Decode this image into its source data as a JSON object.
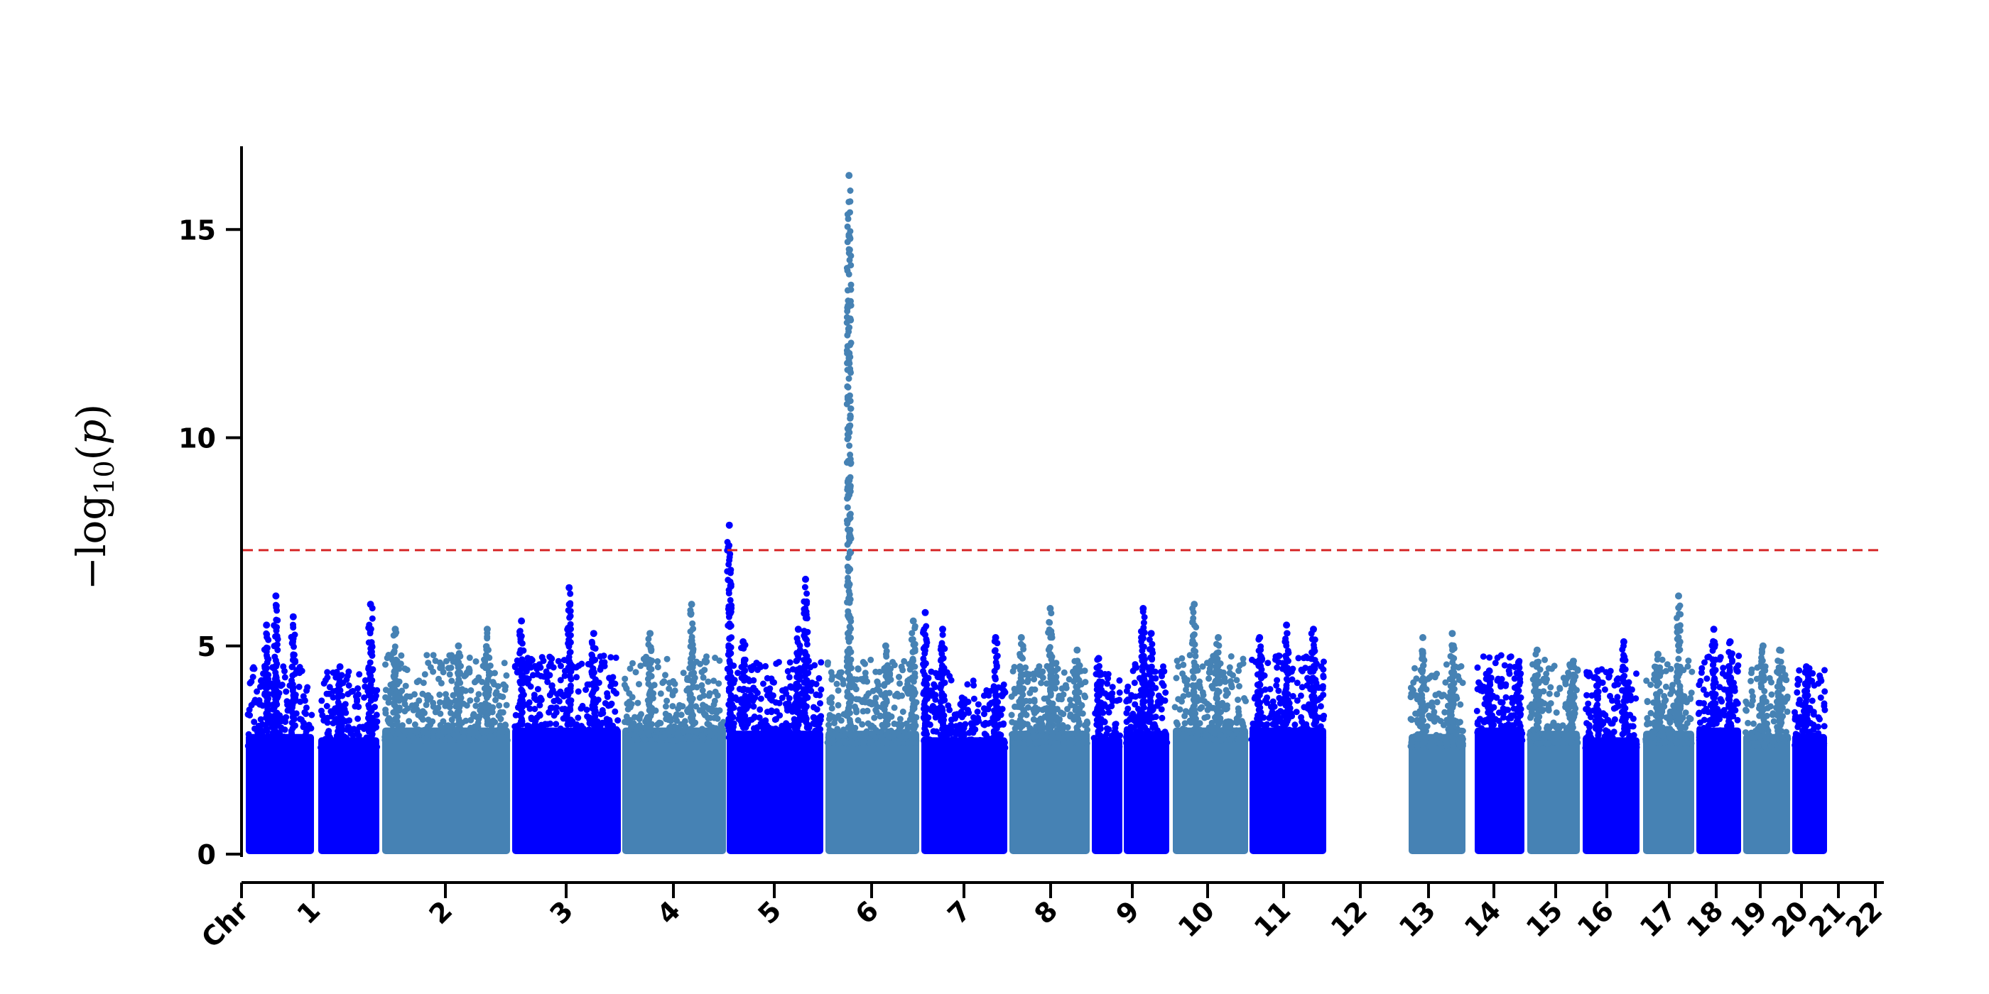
{
  "chart_data": {
    "type": "scatter",
    "subtype": "manhattan",
    "title": "",
    "ylabel": "−log10(p)",
    "ylabel_parts": {
      "minus_log": "−log",
      "sub": "10",
      "open": "(",
      "var": "p",
      "close": ")"
    },
    "xlabel": "",
    "x_axis_start_label": "Chr",
    "ylim": [
      0,
      17
    ],
    "yticks": [
      0,
      5,
      10,
      15
    ],
    "ytick_labels": [
      "0",
      "5",
      "10",
      "15"
    ],
    "significance_threshold": 7.3,
    "threshold_color": "#d62728",
    "series_colors": [
      "#0000ff",
      "#4682b4"
    ],
    "grid": false,
    "legend": "none",
    "chromosomes": [
      {
        "label": "1",
        "start": 0.5,
        "end": 10.7,
        "color": "#0000ff",
        "base": 3.7,
        "peaks": [
          [
            5.0,
            6.2
          ],
          [
            7.6,
            5.7
          ],
          [
            3.6,
            5.5
          ]
        ]
      },
      {
        "label": "2",
        "start": 11.3,
        "end": 20.3,
        "color": "#0000ff",
        "base": 3.6,
        "peaks": [
          [
            19.0,
            6.0
          ],
          [
            14.5,
            4.5
          ]
        ]
      },
      {
        "label": "3",
        "start": 20.8,
        "end": 40.4,
        "color": "#4682b4",
        "base": 3.9,
        "peaks": [
          [
            22.8,
            5.4
          ],
          [
            36.9,
            5.4
          ],
          [
            32.5,
            5.0
          ]
        ]
      },
      {
        "label": "4",
        "start": 40.9,
        "end": 57.3,
        "color": "#0000ff",
        "base": 3.9,
        "peaks": [
          [
            49.5,
            6.4
          ],
          [
            42.3,
            5.6
          ],
          [
            53.2,
            5.3
          ]
        ]
      },
      {
        "label": "5",
        "start": 57.8,
        "end": 73.5,
        "color": "#4682b4",
        "base": 3.9,
        "peaks": [
          [
            68.3,
            6.0
          ],
          [
            62.0,
            5.3
          ]
        ]
      },
      {
        "label": "6",
        "start": 74.0,
        "end": 88.7,
        "color": "#0000ff",
        "base": 3.8,
        "peaks": [
          [
            74.4,
            7.9
          ],
          [
            86.0,
            6.6
          ],
          [
            76.5,
            5.1
          ],
          [
            84.9,
            5.4
          ]
        ]
      },
      {
        "label": "7",
        "start": 89.2,
        "end": 103.5,
        "color": "#4682b4",
        "base": 3.8,
        "peaks": [
          [
            92.8,
            16.3
          ],
          [
            98.4,
            5.0
          ],
          [
            102.6,
            5.6
          ]
        ]
      },
      {
        "label": "8",
        "start": 104.0,
        "end": 117.3,
        "color": "#0000ff",
        "base": 3.6,
        "peaks": [
          [
            104.6,
            5.8
          ],
          [
            107.3,
            5.4
          ],
          [
            115.5,
            5.2
          ]
        ]
      },
      {
        "label": "9",
        "start": 117.8,
        "end": 130.6,
        "color": "#4682b4",
        "base": 3.8,
        "peaks": [
          [
            124.3,
            5.9
          ],
          [
            119.7,
            5.2
          ],
          [
            128.6,
            4.9
          ]
        ]
      },
      {
        "label": "10",
        "start": 131.1,
        "end": 135.6,
        "color": "#0000ff",
        "base": 3.6,
        "peaks": [
          [
            132.1,
            4.7
          ]
        ]
      },
      {
        "label": "11",
        "start": 136.1,
        "end": 142.9,
        "color": "#0000ff",
        "base": 3.8,
        "peaks": [
          [
            139.0,
            5.9
          ],
          [
            140.2,
            5.3
          ]
        ]
      },
      {
        "label": "12",
        "start": 143.4,
        "end": 155.0,
        "color": "#4682b4",
        "base": 3.9,
        "peaks": [
          [
            146.7,
            6.0
          ],
          [
            150.4,
            5.2
          ]
        ]
      },
      {
        "label": "13",
        "start": 155.5,
        "end": 166.9,
        "color": "#0000ff",
        "base": 3.9,
        "peaks": [
          [
            157.0,
            5.2
          ],
          [
            161.0,
            5.5
          ],
          [
            165.0,
            5.4
          ]
        ]
      },
      {
        "label": "14",
        "start": 167.4,
        "end": 179.0,
        "color": "#4682b4",
        "base": 3.7,
        "peaks": [
          [
            170.3,
            5.2
          ],
          [
            176.3,
            5.3
          ]
        ]
      },
      {
        "label": "15",
        "start": 179.5,
        "end": 179.6,
        "color": "#ffffff",
        "base": 0,
        "peaks": []
      },
      {
        "label": "16",
        "start": 181.5,
        "end": 190.0,
        "color": "#0000ff",
        "base": 3.9,
        "peaks": [
          [
            184.0,
            4.4
          ],
          [
            189.0,
            4.6
          ]
        ]
      },
      {
        "label": "17",
        "start": 191.5,
        "end": 199.5,
        "color": "#4682b4",
        "base": 3.8,
        "peaks": [
          [
            193.0,
            4.9
          ],
          [
            198.5,
            4.3
          ]
        ]
      },
      {
        "label": "18",
        "start": 201.0,
        "end": 208.6,
        "color": "#0000ff",
        "base": 3.6,
        "peaks": [
          [
            206.5,
            5.1
          ],
          [
            203.0,
            4.4
          ]
        ]
      },
      {
        "label": "19",
        "start": 209.1,
        "end": 217.3,
        "color": "#4682b4",
        "base": 3.8,
        "peaks": [
          [
            214.8,
            6.2
          ],
          [
            211.5,
            4.8
          ]
        ]
      },
      {
        "label": "20",
        "start": 217.8,
        "end": 226.0,
        "color": "#0000ff",
        "base": 3.9,
        "peaks": [
          [
            221.0,
            5.4
          ],
          [
            224.0,
            5.1
          ]
        ]
      },
      {
        "label": "21",
        "start": 226.5,
        "end": 233.6,
        "color": "#4682b4",
        "base": 3.7,
        "peaks": [
          [
            229.5,
            5.0
          ],
          [
            232.0,
            4.9
          ]
        ]
      },
      {
        "label": "22",
        "start": 234.1,
        "end": 240.0,
        "color": "#0000ff",
        "base": 3.7,
        "peaks": [
          [
            236.5,
            4.5
          ]
        ]
      }
    ],
    "x_tick_labels": [
      "Chr",
      "1",
      "2",
      "3",
      "4",
      "5",
      "6",
      "7",
      "8",
      "9",
      "10",
      "11",
      "12",
      "13",
      "14",
      "15",
      "16",
      "17",
      "18",
      "19",
      "20",
      "21",
      "22"
    ]
  }
}
